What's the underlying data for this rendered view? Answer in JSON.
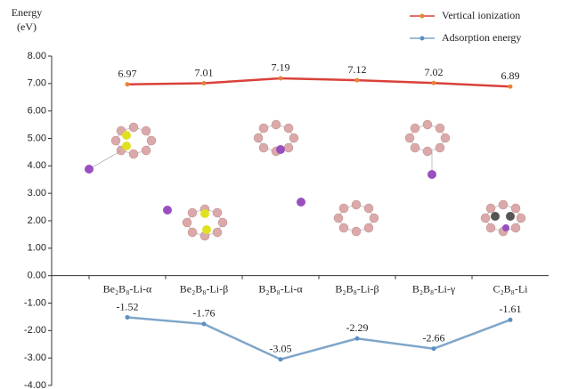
{
  "chart_data": {
    "type": "line",
    "y_label": [
      "Energy",
      "(eV)"
    ],
    "categories": [
      "Be₂B₈-Li-α",
      "Be₂B₈-Li-β",
      "B₂B₈-Li-α",
      "B₂B₈-Li-β",
      "B₂B₈-Li-γ",
      "C₂B₈-Li"
    ],
    "series": [
      {
        "name": "Vertical ionization",
        "color": "#d9413a",
        "marker_color": "#e8833a",
        "values": [
          6.97,
          7.01,
          7.19,
          7.12,
          7.02,
          6.89
        ]
      },
      {
        "name": "Adsorption energy",
        "color": "#7fa6c9",
        "marker_color": "#5b8fc4",
        "values": [
          -1.52,
          -1.76,
          -3.05,
          -2.29,
          -2.66,
          -1.61
        ]
      }
    ],
    "ylim": [
      -4,
      8
    ],
    "yticks": [
      {
        "value": -4,
        "label": "-4.00"
      },
      {
        "value": -3,
        "label": "-3.00"
      },
      {
        "value": -2,
        "label": "-2.00"
      },
      {
        "value": -1,
        "label": "-1.00"
      },
      {
        "value": 0,
        "label": "0.00"
      },
      {
        "value": 1,
        "label": "1.00"
      },
      {
        "value": 2,
        "label": "2.00"
      },
      {
        "value": 3,
        "label": "3.00"
      },
      {
        "value": 4,
        "label": "4.00"
      },
      {
        "value": 5,
        "label": "5.00"
      },
      {
        "value": 6,
        "label": "6.00"
      },
      {
        "value": 7,
        "label": "7.00"
      },
      {
        "value": 8,
        "label": "8.00"
      }
    ],
    "legend": "top-right"
  }
}
